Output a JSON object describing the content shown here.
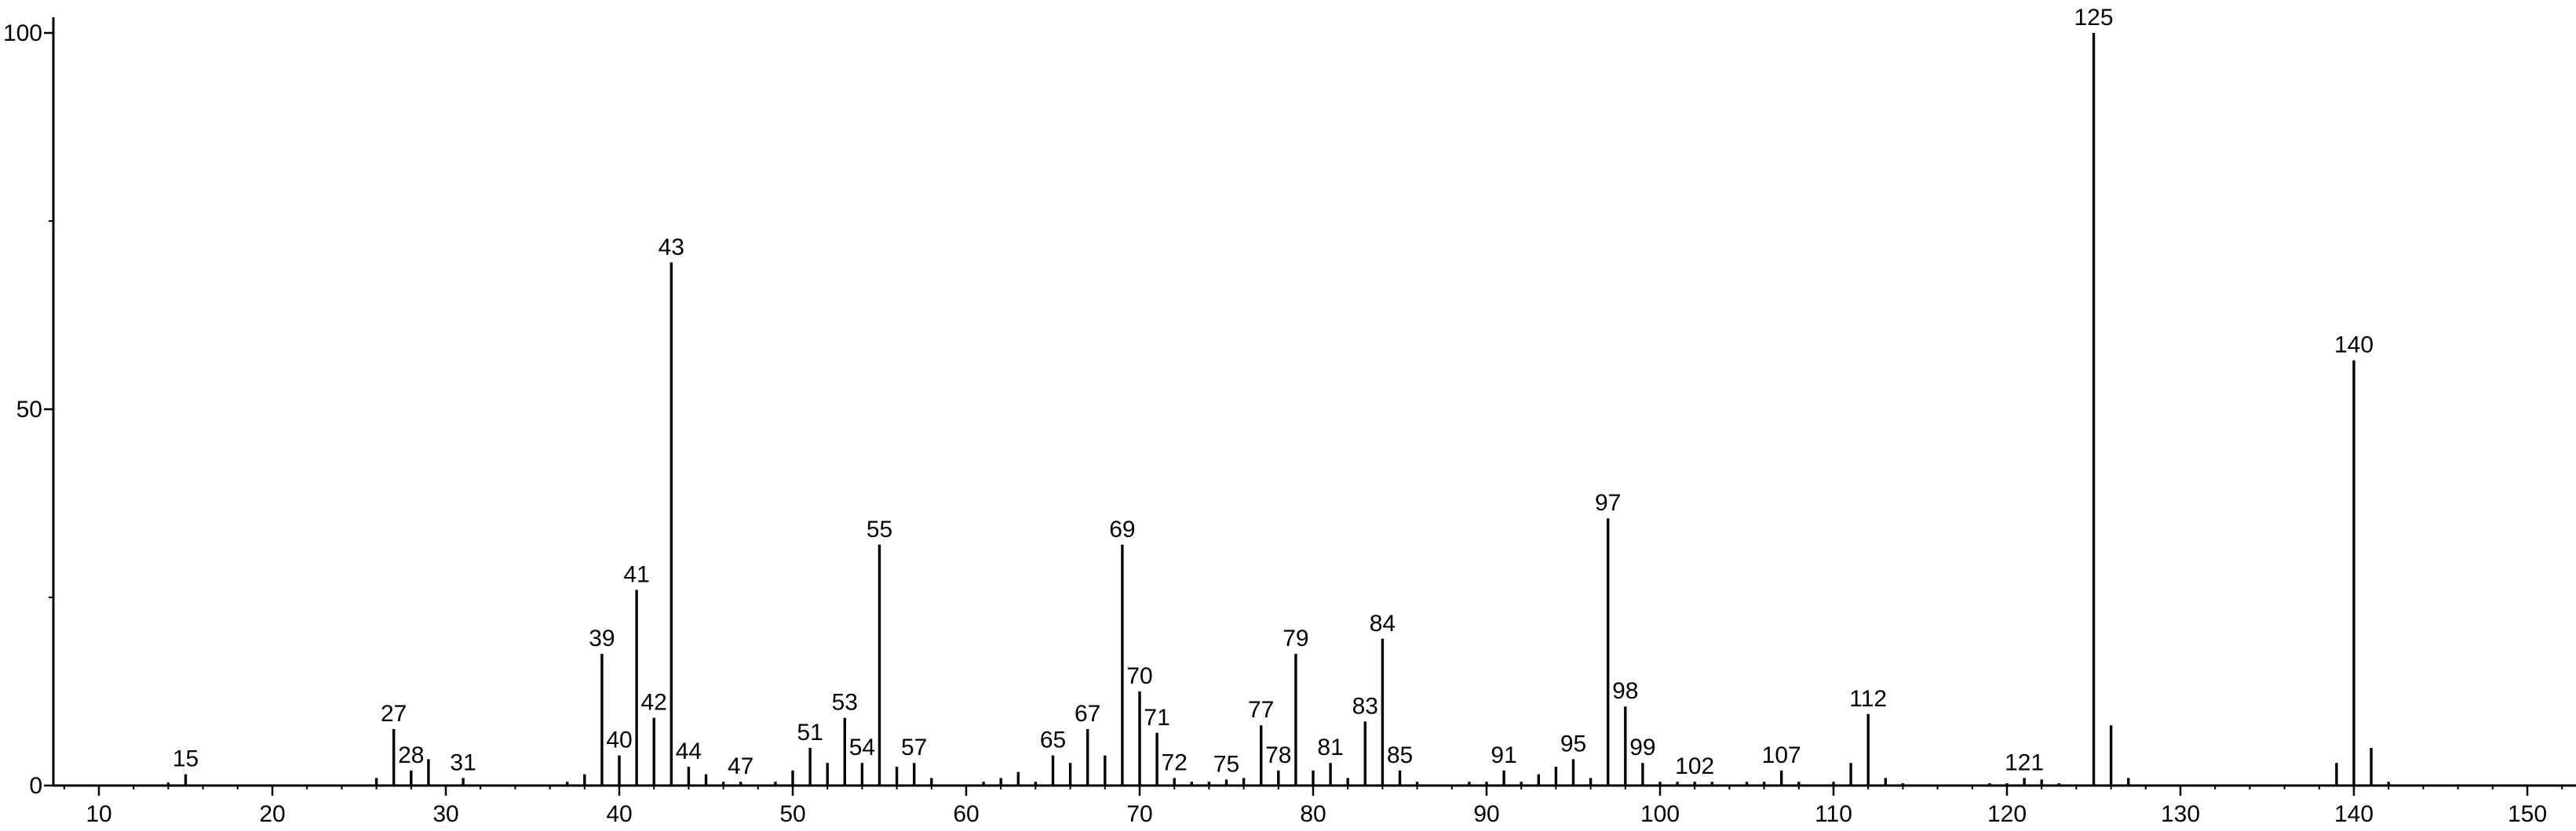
{
  "chart_data": {
    "type": "bar",
    "title": "",
    "xlabel": "",
    "ylabel": "",
    "xlim": [
      7,
      153
    ],
    "ylim": [
      0,
      100
    ],
    "xticks": [
      10,
      20,
      30,
      40,
      50,
      60,
      70,
      80,
      90,
      100,
      110,
      120,
      130,
      140,
      150
    ],
    "yticks": [
      0,
      50,
      100
    ],
    "grid": false,
    "legend": "none",
    "peaks": [
      {
        "x": 14,
        "y": 0.4
      },
      {
        "x": 15,
        "y": 1.5,
        "label": "15"
      },
      {
        "x": 26,
        "y": 1.0
      },
      {
        "x": 27,
        "y": 7.5,
        "label": "27"
      },
      {
        "x": 28,
        "y": 2.0,
        "label": "28"
      },
      {
        "x": 29,
        "y": 3.5
      },
      {
        "x": 31,
        "y": 1.0,
        "label": "31"
      },
      {
        "x": 37,
        "y": 0.5
      },
      {
        "x": 38,
        "y": 1.5
      },
      {
        "x": 39,
        "y": 17.5,
        "label": "39"
      },
      {
        "x": 40,
        "y": 4.0,
        "label": "40"
      },
      {
        "x": 41,
        "y": 26.0,
        "label": "41"
      },
      {
        "x": 42,
        "y": 9.0,
        "label": "42"
      },
      {
        "x": 43,
        "y": 69.5,
        "label": "43"
      },
      {
        "x": 44,
        "y": 2.5,
        "label": "44"
      },
      {
        "x": 45,
        "y": 1.5
      },
      {
        "x": 46,
        "y": 0.5
      },
      {
        "x": 47,
        "y": 0.5,
        "label": "47"
      },
      {
        "x": 49,
        "y": 0.5
      },
      {
        "x": 50,
        "y": 2.0
      },
      {
        "x": 51,
        "y": 5.0,
        "label": "51"
      },
      {
        "x": 52,
        "y": 3.0
      },
      {
        "x": 53,
        "y": 9.0,
        "label": "53"
      },
      {
        "x": 54,
        "y": 3.0,
        "label": "54"
      },
      {
        "x": 55,
        "y": 32.0,
        "label": "55"
      },
      {
        "x": 56,
        "y": 2.5
      },
      {
        "x": 57,
        "y": 3.0,
        "label": "57"
      },
      {
        "x": 58,
        "y": 1.0
      },
      {
        "x": 61,
        "y": 0.5
      },
      {
        "x": 62,
        "y": 1.0
      },
      {
        "x": 63,
        "y": 1.8
      },
      {
        "x": 64,
        "y": 0.5
      },
      {
        "x": 65,
        "y": 4.0,
        "label": "65"
      },
      {
        "x": 66,
        "y": 3.0
      },
      {
        "x": 67,
        "y": 7.5,
        "label": "67"
      },
      {
        "x": 68,
        "y": 4.0
      },
      {
        "x": 69,
        "y": 32.0,
        "label": "69"
      },
      {
        "x": 70,
        "y": 12.5,
        "label": "70"
      },
      {
        "x": 71,
        "y": 7.0,
        "label": "71"
      },
      {
        "x": 72,
        "y": 1.0,
        "label": "72"
      },
      {
        "x": 73,
        "y": 0.5
      },
      {
        "x": 74,
        "y": 0.5
      },
      {
        "x": 75,
        "y": 0.8,
        "label": "75"
      },
      {
        "x": 76,
        "y": 1.0
      },
      {
        "x": 77,
        "y": 8.0,
        "label": "77"
      },
      {
        "x": 78,
        "y": 2.0,
        "label": "78"
      },
      {
        "x": 79,
        "y": 17.5,
        "label": "79"
      },
      {
        "x": 80,
        "y": 2.0
      },
      {
        "x": 81,
        "y": 3.0,
        "label": "81"
      },
      {
        "x": 82,
        "y": 1.0
      },
      {
        "x": 83,
        "y": 8.5,
        "label": "83"
      },
      {
        "x": 84,
        "y": 19.5,
        "label": "84"
      },
      {
        "x": 85,
        "y": 2.0,
        "label": "85"
      },
      {
        "x": 86,
        "y": 0.5
      },
      {
        "x": 89,
        "y": 0.5
      },
      {
        "x": 90,
        "y": 0.5
      },
      {
        "x": 91,
        "y": 2.0,
        "label": "91"
      },
      {
        "x": 92,
        "y": 0.5
      },
      {
        "x": 93,
        "y": 1.5
      },
      {
        "x": 94,
        "y": 2.5
      },
      {
        "x": 95,
        "y": 3.5,
        "label": "95"
      },
      {
        "x": 96,
        "y": 1.0
      },
      {
        "x": 97,
        "y": 35.5,
        "label": "97"
      },
      {
        "x": 98,
        "y": 10.5,
        "label": "98"
      },
      {
        "x": 99,
        "y": 3.0,
        "label": "99"
      },
      {
        "x": 100,
        "y": 0.5
      },
      {
        "x": 101,
        "y": 0.5
      },
      {
        "x": 102,
        "y": 0.5,
        "label": "102"
      },
      {
        "x": 103,
        "y": 0.5
      },
      {
        "x": 105,
        "y": 0.5
      },
      {
        "x": 106,
        "y": 0.5
      },
      {
        "x": 107,
        "y": 2.0,
        "label": "107"
      },
      {
        "x": 108,
        "y": 0.5
      },
      {
        "x": 110,
        "y": 0.5
      },
      {
        "x": 111,
        "y": 3.0
      },
      {
        "x": 112,
        "y": 9.5,
        "label": "112"
      },
      {
        "x": 113,
        "y": 1.0
      },
      {
        "x": 114,
        "y": 0.3
      },
      {
        "x": 119,
        "y": 0.3
      },
      {
        "x": 120,
        "y": 0.3
      },
      {
        "x": 121,
        "y": 1.0,
        "label": "121"
      },
      {
        "x": 122,
        "y": 0.8
      },
      {
        "x": 123,
        "y": 0.3
      },
      {
        "x": 125,
        "y": 100.0,
        "label": "125"
      },
      {
        "x": 126,
        "y": 8.0
      },
      {
        "x": 127,
        "y": 1.0
      },
      {
        "x": 139,
        "y": 3.0
      },
      {
        "x": 140,
        "y": 56.5,
        "label": "140"
      },
      {
        "x": 141,
        "y": 5.0
      },
      {
        "x": 142,
        "y": 0.5
      }
    ]
  }
}
